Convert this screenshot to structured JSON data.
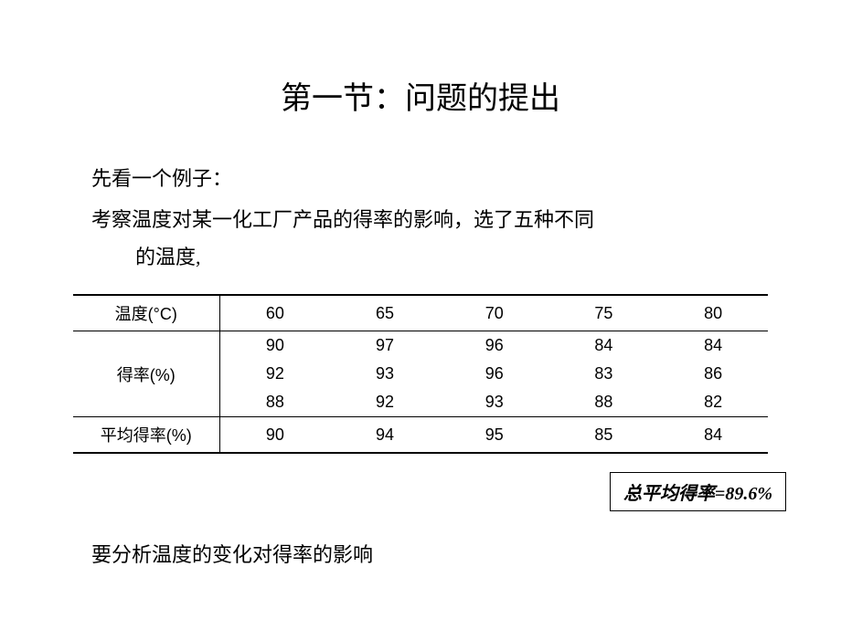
{
  "title": "第一节：问题的提出",
  "intro1": "先看一个例子：",
  "intro2": "考察温度对某一化工厂产品的得率的影响，选了五种不同",
  "intro3": "的温度,",
  "table": {
    "col_header_temp": "温度(°C)",
    "col_header_yield": "得率(%)",
    "col_header_avg": "平均得率(%)",
    "temps": [
      "60",
      "65",
      "70",
      "75",
      "80"
    ],
    "yields_row1": [
      "90",
      "97",
      "96",
      "84",
      "84"
    ],
    "yields_row2": [
      "92",
      "93",
      "96",
      "83",
      "86"
    ],
    "yields_row3": [
      "88",
      "92",
      "93",
      "88",
      "82"
    ],
    "avg_row": [
      "90",
      "94",
      "95",
      "85",
      "84"
    ]
  },
  "summary": "总平均得率=89.6%",
  "final": "要分析温度的变化对得率的影响"
}
